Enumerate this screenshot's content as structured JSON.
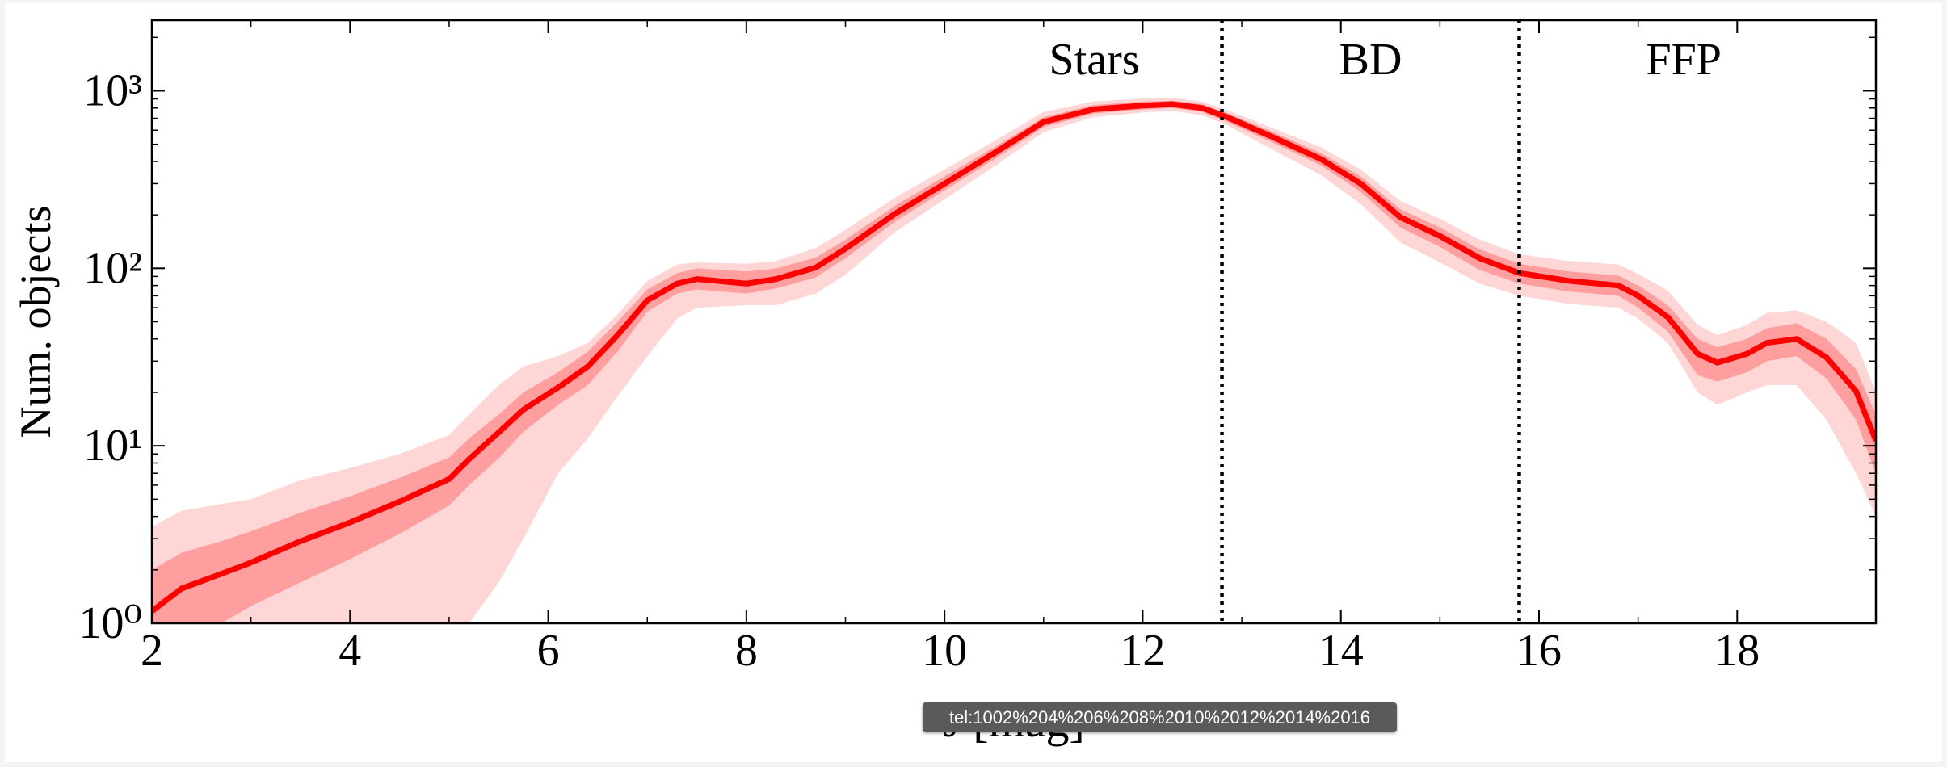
{
  "chart_data": {
    "type": "line",
    "ylabel": "Num. objects",
    "xlabel": "J [mag]",
    "log_y": true,
    "xlim": [
      2,
      19.4
    ],
    "ylim": [
      1,
      2500
    ],
    "xticks": [
      2,
      4,
      6,
      8,
      10,
      12,
      14,
      16,
      18
    ],
    "yticks": [
      {
        "value": 1,
        "label": "10⁰"
      },
      {
        "value": 10,
        "label": "10¹"
      },
      {
        "value": 100,
        "label": "10²"
      },
      {
        "value": 1000,
        "label": "10³"
      }
    ],
    "color": "#ff0000",
    "inner_color": "#ff9e9e",
    "outer_color": "#ffd6d6",
    "x": [
      2,
      2.3,
      2.7,
      3,
      3.5,
      4,
      4.5,
      5,
      5.2,
      5.5,
      5.75,
      6.1,
      6.4,
      6.7,
      7,
      7.3,
      7.5,
      8,
      8.3,
      8.7,
      9,
      9.5,
      10,
      10.5,
      11,
      11.5,
      12,
      12.3,
      12.6,
      12.85,
      13.3,
      13.8,
      14.2,
      14.6,
      15,
      15.4,
      15.8,
      16.3,
      16.8,
      17,
      17.3,
      17.6,
      17.8,
      18.1,
      18.3,
      18.6,
      18.9,
      19.2,
      19.4
    ],
    "values": [
      1.17,
      1.57,
      1.9,
      2.2,
      2.9,
      3.7,
      4.85,
      6.5,
      8.4,
      11.9,
      16,
      21.3,
      28,
      42,
      66,
      82,
      87,
      82,
      87,
      101,
      129,
      203,
      300,
      445,
      668,
      786,
      826,
      840,
      800,
      711,
      553,
      412,
      300,
      194,
      152,
      114,
      94,
      85,
      80,
      70,
      53,
      33,
      29.4,
      33,
      38,
      40,
      31.5,
      20.3,
      10.7
    ],
    "inner_hi": [
      2.0,
      2.5,
      2.9,
      3.3,
      4.2,
      5.2,
      6.6,
      8.6,
      11,
      15,
      20,
      26,
      34,
      50,
      76,
      94,
      100,
      96,
      100,
      115,
      145,
      225,
      330,
      480,
      710,
      830,
      870,
      880,
      840,
      750,
      590,
      445,
      330,
      215,
      170,
      128,
      106,
      96,
      91,
      80,
      62,
      40,
      36,
      40,
      46,
      49,
      40,
      27,
      15
    ],
    "inner_lo": [
      0.6,
      0.8,
      1.0,
      1.25,
      1.7,
      2.3,
      3.2,
      4.6,
      6.0,
      8.5,
      12,
      17,
      22,
      34,
      57,
      72,
      76,
      72,
      77,
      89,
      114,
      183,
      275,
      410,
      625,
      745,
      785,
      800,
      760,
      670,
      515,
      380,
      270,
      170,
      132,
      98,
      82,
      74,
      70,
      60,
      44,
      25,
      23,
      26,
      30,
      32,
      24,
      14,
      7
    ],
    "outer_hi": [
      3.5,
      4.3,
      4.7,
      5,
      6.4,
      7.5,
      9,
      11.5,
      15,
      22,
      28,
      32,
      38,
      55,
      85,
      105,
      108,
      106,
      110,
      130,
      165,
      250,
      360,
      520,
      760,
      870,
      905,
      910,
      870,
      780,
      620,
      480,
      360,
      240,
      190,
      145,
      120,
      110,
      105,
      93,
      75,
      48,
      42,
      48,
      56,
      58,
      50,
      38,
      20
    ],
    "outer_lo": [
      0.2,
      0.2,
      0.2,
      0.2,
      0.2,
      0.2,
      0.3,
      0.6,
      1.0,
      1.7,
      3,
      7,
      11,
      19,
      32,
      52,
      60,
      62,
      62,
      72,
      92,
      160,
      245,
      375,
      585,
      710,
      755,
      770,
      730,
      640,
      470,
      335,
      230,
      140,
      108,
      82,
      70,
      63,
      60,
      52,
      38,
      20,
      17,
      20,
      22,
      22,
      14,
      7,
      4
    ],
    "dividers": [
      12.8,
      15.8
    ],
    "regions": [
      "Stars",
      "BD",
      "FFP"
    ],
    "tooltip": "tel:1002%204%206%208%2010%2012%2014%2016"
  }
}
